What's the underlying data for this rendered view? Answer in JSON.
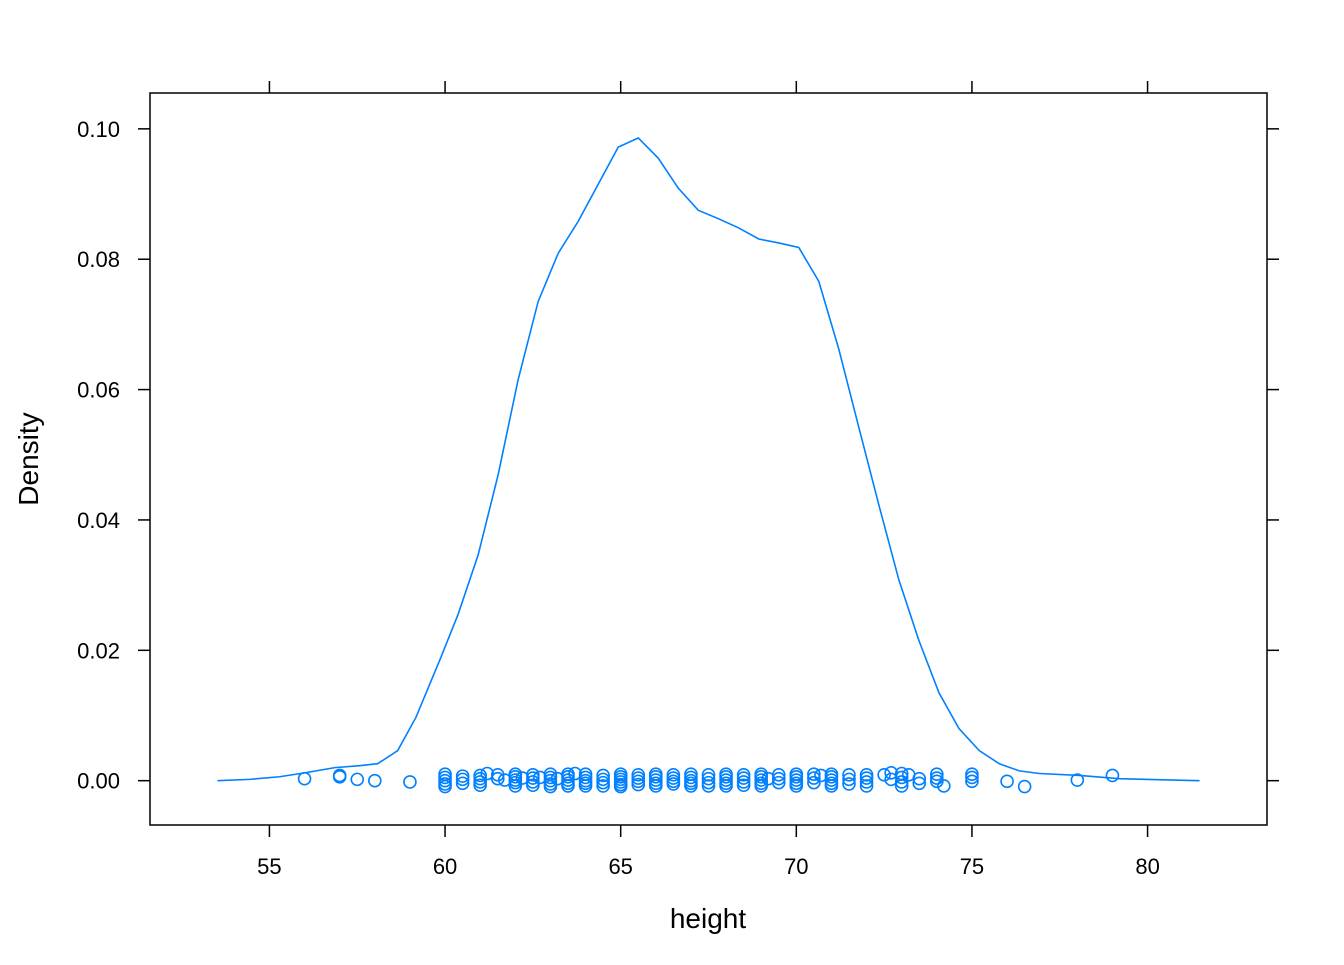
{
  "chart_data": {
    "type": "line",
    "subtype": "density plot with jittered raw points",
    "title": "",
    "xlabel": "height",
    "ylabel": "Density",
    "xlim": [
      51.6,
      83.4
    ],
    "ylim": [
      -0.0068,
      0.1055
    ],
    "xticks": [
      55,
      60,
      65,
      70,
      75,
      80
    ],
    "xtick_labels": [
      "55",
      "60",
      "65",
      "70",
      "75",
      "80"
    ],
    "yticks": [
      0,
      0.02,
      0.04,
      0.06,
      0.08,
      0.1
    ],
    "ytick_labels": [
      "0.00",
      "0.02",
      "0.04",
      "0.06",
      "0.08",
      "0.10"
    ],
    "grid": false,
    "color": "#0080ff",
    "density": {
      "x": [
        53.52,
        54.43,
        55.29,
        56.0,
        56.86,
        57.57,
        58.08,
        58.65,
        59.17,
        59.85,
        60.37,
        60.94,
        61.51,
        62.08,
        62.65,
        63.22,
        63.79,
        64.36,
        64.93,
        65.5,
        66.07,
        66.64,
        67.21,
        67.79,
        68.36,
        68.93,
        69.5,
        70.07,
        70.64,
        71.21,
        71.78,
        72.35,
        72.92,
        73.49,
        74.06,
        74.63,
        75.21,
        75.78,
        76.35,
        76.92,
        78.06,
        79.2,
        81.48
      ],
      "y": [
        0,
        0.0002,
        0.0006,
        0.0012,
        0.002,
        0.0023,
        0.0026,
        0.0046,
        0.0097,
        0.0185,
        0.0255,
        0.0346,
        0.0469,
        0.0615,
        0.0735,
        0.0809,
        0.0858,
        0.0915,
        0.0972,
        0.0986,
        0.0955,
        0.0909,
        0.0875,
        0.0862,
        0.0848,
        0.0831,
        0.0825,
        0.0818,
        0.0766,
        0.0662,
        0.0542,
        0.0423,
        0.0308,
        0.0215,
        0.0135,
        0.008,
        0.0046,
        0.0026,
        0.0015,
        0.0011,
        0.0008,
        0.0003,
        0
      ]
    },
    "points": {
      "x": [
        56,
        57,
        57,
        57.5,
        58,
        59,
        60,
        60,
        60,
        60,
        60,
        60.5,
        60.5,
        60.5,
        61,
        61,
        61,
        61,
        61.2,
        61.5,
        61.5,
        61.7,
        62,
        62,
        62,
        62,
        62,
        62.2,
        62.5,
        62.5,
        62.5,
        62.5,
        62.7,
        63,
        63,
        63,
        63,
        63,
        63.2,
        63.5,
        63.5,
        63.5,
        63.5,
        63.5,
        63.7,
        64,
        64,
        64,
        64,
        64,
        64.5,
        64.5,
        64.5,
        64.5,
        65,
        65,
        65,
        65,
        65,
        65,
        65.5,
        65.5,
        65.5,
        65.5,
        66,
        66,
        66,
        66,
        66,
        66.5,
        66.5,
        66.5,
        66.5,
        67,
        67,
        67,
        67,
        67,
        67.5,
        67.5,
        67.5,
        67.5,
        68,
        68,
        68,
        68,
        68,
        68.5,
        68.5,
        68.5,
        68.5,
        69,
        69,
        69,
        69,
        69,
        69.2,
        69.5,
        69.5,
        69.5,
        70,
        70,
        70,
        70,
        70,
        70.5,
        70.5,
        70.5,
        70.7,
        71,
        71,
        71,
        71,
        71,
        71.5,
        71.5,
        71.5,
        72,
        72,
        72,
        72,
        72.5,
        72.7,
        72.7,
        73,
        73,
        73,
        73,
        73.2,
        73.5,
        73.5,
        74,
        74,
        74,
        74.2,
        75,
        75,
        75,
        76,
        76.5,
        78,
        79
      ],
      "jitter": [
        0.0003,
        0.0006,
        0.0008,
        0.0002,
        0,
        -0.0002,
        0.001,
        0.0005,
        0,
        -0.0005,
        -0.0009,
        0.0007,
        0.0002,
        -0.0004,
        0.0008,
        0.0003,
        -0.0002,
        -0.0007,
        0.0011,
        0.0009,
        0.0003,
        0.0001,
        0.001,
        0.0006,
        0.0001,
        -0.0003,
        -0.0008,
        0.0004,
        0.0009,
        0.0004,
        -0.0002,
        -0.0007,
        0.0005,
        0.001,
        0.0005,
        0,
        -0.0005,
        -0.0009,
        0.0003,
        0.001,
        0.0006,
        0.0001,
        -0.0004,
        -0.0008,
        0.0011,
        0.001,
        0.0005,
        0,
        -0.0004,
        -0.0008,
        0.0008,
        0.0002,
        -0.0003,
        -0.0008,
        0.001,
        0.0006,
        0.0002,
        -0.0002,
        -0.0006,
        -0.0009,
        0.0009,
        0.0004,
        -0.0001,
        -0.0006,
        0.001,
        0.0006,
        0.0001,
        -0.0004,
        -0.0008,
        0.0009,
        0.0004,
        -0.0001,
        -0.0005,
        0.001,
        0.0005,
        0,
        -0.0004,
        -0.0008,
        0.0009,
        0.0003,
        -0.0003,
        -0.0008,
        0.001,
        0.0006,
        0.0001,
        -0.0004,
        -0.0008,
        0.0009,
        0.0004,
        -0.0002,
        -0.0007,
        0.001,
        0.0006,
        0.0001,
        -0.0004,
        -0.0008,
        0.0003,
        0.0009,
        0.0003,
        -0.0003,
        0.001,
        0.0006,
        0.0001,
        -0.0004,
        -0.0008,
        0.001,
        0.0004,
        -0.0003,
        0.0008,
        0.001,
        0.0006,
        0.0001,
        -0.0004,
        -0.0008,
        0.0009,
        0.0002,
        -0.0005,
        0.0009,
        0.0004,
        -0.0002,
        -0.0008,
        0.0009,
        0.0012,
        0.0002,
        0.0011,
        0.0005,
        -0.0002,
        -0.0008,
        0.0009,
        0.0003,
        -0.0004,
        0.001,
        0.0004,
        -0.0001,
        -0.0008,
        0.001,
        0.0005,
        -0.0001,
        -0.0001,
        -0.0009,
        0.0001,
        0.0008
      ]
    }
  }
}
